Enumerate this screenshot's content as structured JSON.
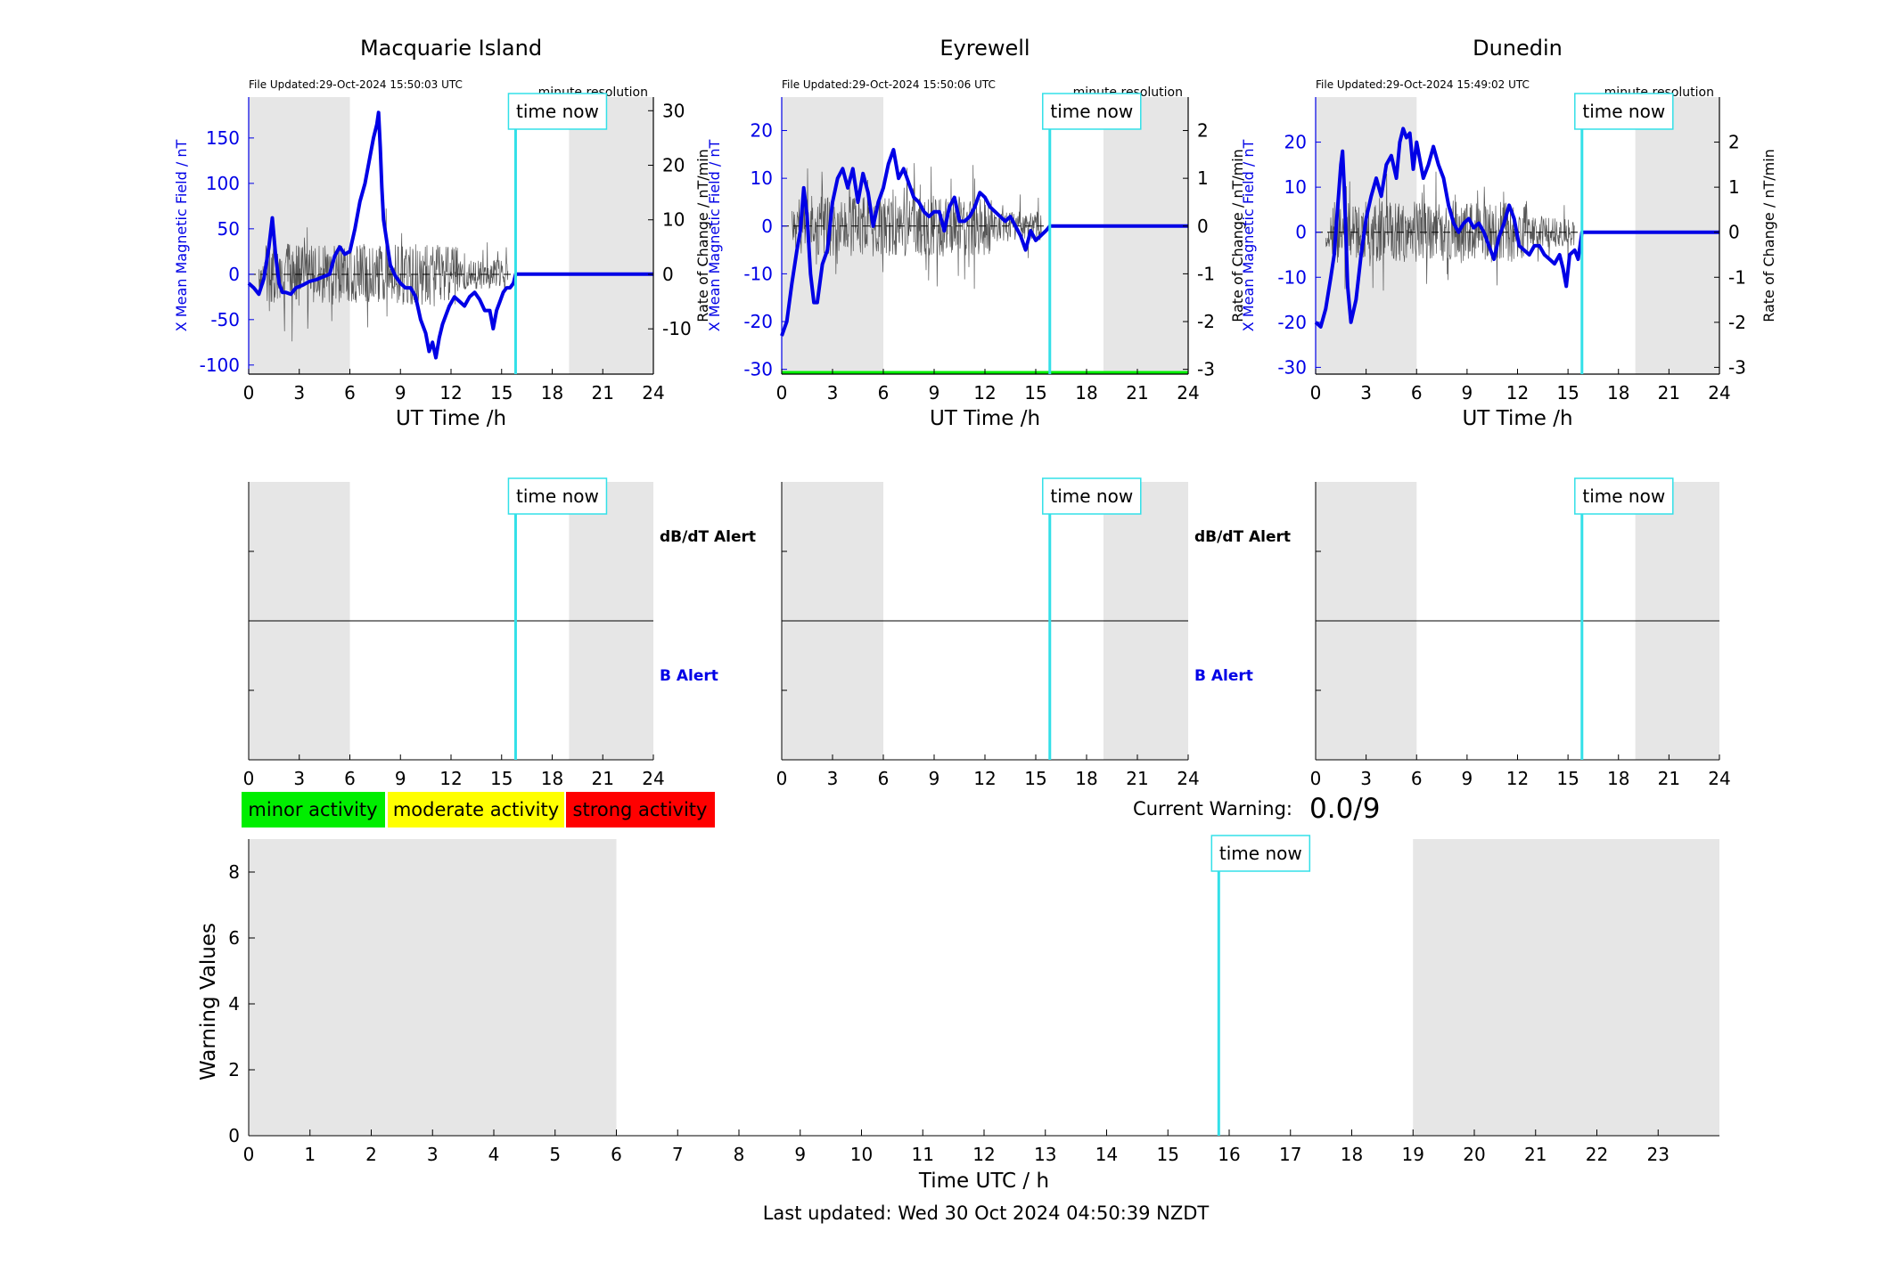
{
  "colors": {
    "blue": "#0000e6",
    "cyan": "#33e0e8",
    "gray_band": "#e6e6e6",
    "green": "#00ee00",
    "yellow": "#ffff00",
    "red": "#ff0000",
    "trace": "#555555"
  },
  "legend": {
    "minor": "minor activity",
    "moderate": "moderate activity",
    "strong": "strong activity"
  },
  "time_now_label": "time now",
  "time_now_hour": 15.83,
  "current_warning": {
    "label": "Current Warning:",
    "value": "0.0/9"
  },
  "alerts": {
    "dbdt": "dB/dT Alert",
    "b": "B Alert"
  },
  "resolution_label": "minute resolution",
  "last_updated": "Last updated: Wed 30 Oct 2024 04:50:39 NZDT",
  "chart_data": [
    {
      "type": "line",
      "title": "Macquarie Island",
      "file_updated": "File Updated:29-Oct-2024 15:50:03 UTC",
      "xlabel": "UT Time /h",
      "ylabel": "X Mean Magnetic Field / nT",
      "y2label": "Rate of Change / nT/min",
      "xlim": [
        0,
        24
      ],
      "xticks": [
        "0",
        "3",
        "6",
        "9",
        "12",
        "15",
        "18",
        "21",
        "24"
      ],
      "ylim": [
        -110,
        195
      ],
      "yticks": [
        -100,
        -50,
        0,
        50,
        100,
        150
      ],
      "y2lim": [
        -18.3,
        32.5
      ],
      "y2ticks": [
        -10,
        0,
        10,
        20,
        30
      ],
      "night_bands": [
        [
          0,
          6
        ],
        [
          19,
          24
        ]
      ],
      "series": [
        {
          "x": [
            0,
            0.3,
            0.6,
            0.9,
            1.2,
            1.4,
            1.6,
            1.8,
            2.0,
            2.2,
            2.5,
            2.8,
            3.2,
            3.6,
            4.0,
            4.4,
            4.8,
            5.1,
            5.4,
            5.7,
            6.0,
            6.3,
            6.6,
            6.9,
            7.2,
            7.4,
            7.6,
            7.7,
            7.8,
            7.9,
            8.0,
            8.2,
            8.4,
            8.7,
            9.0,
            9.3,
            9.6,
            9.9,
            10.2,
            10.5,
            10.7,
            10.9,
            11.1,
            11.3,
            11.5,
            11.7,
            11.9,
            12.2,
            12.5,
            12.8,
            13.1,
            13.4,
            13.7,
            14.0,
            14.3,
            14.5,
            14.7,
            14.9,
            15.1,
            15.3,
            15.5,
            15.7,
            15.83,
            16.0,
            18.0,
            21.0,
            24.0
          ],
          "y": [
            -10,
            -15,
            -22,
            -5,
            30,
            62,
            20,
            -10,
            -20,
            -20,
            -22,
            -15,
            -12,
            -8,
            -6,
            -3,
            0,
            20,
            30,
            22,
            25,
            50,
            80,
            100,
            130,
            150,
            165,
            178,
            140,
            95,
            60,
            35,
            10,
            -2,
            -10,
            -15,
            -15,
            -25,
            -50,
            -65,
            -85,
            -75,
            -92,
            -70,
            -55,
            -45,
            -35,
            -25,
            -30,
            -35,
            -25,
            -20,
            -28,
            -40,
            -40,
            -60,
            -40,
            -30,
            -20,
            -15,
            -15,
            -10,
            0,
            0,
            0,
            0,
            0
          ]
        }
      ]
    },
    {
      "type": "line",
      "title": "Eyrewell",
      "file_updated": "File Updated:29-Oct-2024 15:50:06 UTC",
      "xlabel": "UT Time /h",
      "ylabel": "X Mean Magnetic Field / nT",
      "y2label": "Rate of Change / nT/min",
      "xlim": [
        0,
        24
      ],
      "xticks": [
        "0",
        "3",
        "6",
        "9",
        "12",
        "15",
        "18",
        "21",
        "24"
      ],
      "ylim": [
        -31,
        27
      ],
      "yticks": [
        -30,
        -20,
        -10,
        0,
        10,
        20
      ],
      "y2lim": [
        -3.1,
        2.7
      ],
      "y2ticks": [
        -3,
        -2,
        -1,
        0,
        1,
        2
      ],
      "night_bands": [
        [
          0,
          6
        ],
        [
          19,
          24
        ]
      ],
      "series": [
        {
          "x": [
            0,
            0.3,
            0.6,
            0.9,
            1.1,
            1.3,
            1.5,
            1.7,
            1.9,
            2.1,
            2.4,
            2.7,
            3.0,
            3.3,
            3.6,
            3.9,
            4.2,
            4.5,
            4.8,
            5.1,
            5.4,
            5.7,
            6.0,
            6.3,
            6.6,
            6.9,
            7.2,
            7.5,
            7.8,
            8.1,
            8.4,
            8.7,
            9.0,
            9.3,
            9.6,
            9.9,
            10.2,
            10.5,
            10.8,
            11.1,
            11.4,
            11.7,
            12.0,
            12.3,
            12.6,
            12.9,
            13.2,
            13.5,
            13.8,
            14.1,
            14.4,
            14.7,
            15.0,
            15.3,
            15.6,
            15.83,
            16.0,
            18.0,
            21.0,
            24.0
          ],
          "y": [
            -23,
            -20,
            -12,
            -5,
            -1,
            8,
            2,
            -10,
            -16,
            -16,
            -8,
            -5,
            5,
            10,
            12,
            8,
            12,
            5,
            11,
            7,
            0,
            5,
            8,
            13,
            16,
            10,
            12,
            9,
            6,
            5,
            3,
            2,
            3,
            3,
            -1,
            4,
            6,
            1,
            1,
            2,
            4,
            7,
            6,
            4,
            3,
            2,
            1,
            2,
            0,
            -2,
            -5,
            -1,
            -3,
            -2,
            -1,
            0,
            0,
            0,
            0,
            0
          ]
        }
      ]
    },
    {
      "type": "line",
      "title": "Dunedin",
      "file_updated": "File Updated:29-Oct-2024 15:49:02 UTC",
      "xlabel": "UT Time /h",
      "ylabel": "X Mean Magnetic Field / nT",
      "y2label": "Rate of Change / nT/min",
      "xlim": [
        0,
        24
      ],
      "xticks": [
        "0",
        "3",
        "6",
        "9",
        "12",
        "15",
        "18",
        "21",
        "24"
      ],
      "ylim": [
        -31.5,
        30
      ],
      "yticks": [
        -30,
        -20,
        -10,
        0,
        10,
        20
      ],
      "y2lim": [
        -3.15,
        3.0
      ],
      "y2ticks": [
        -3,
        -2,
        -1,
        0,
        1,
        2
      ],
      "night_bands": [
        [
          0,
          6
        ],
        [
          19,
          24
        ]
      ],
      "series": [
        {
          "x": [
            0,
            0.3,
            0.6,
            0.9,
            1.1,
            1.3,
            1.5,
            1.6,
            1.7,
            1.9,
            2.1,
            2.4,
            2.7,
            3.0,
            3.3,
            3.6,
            3.9,
            4.2,
            4.5,
            4.8,
            5.0,
            5.2,
            5.4,
            5.6,
            5.8,
            6.0,
            6.2,
            6.4,
            6.7,
            7.0,
            7.3,
            7.6,
            7.9,
            8.2,
            8.5,
            8.8,
            9.1,
            9.4,
            9.7,
            10.0,
            10.3,
            10.6,
            10.9,
            11.2,
            11.5,
            11.8,
            12.1,
            12.4,
            12.7,
            13.0,
            13.3,
            13.6,
            13.9,
            14.2,
            14.5,
            14.7,
            14.9,
            15.1,
            15.4,
            15.6,
            15.83,
            16.0,
            18.0,
            21.0,
            24.0
          ],
          "y": [
            -20,
            -21,
            -17,
            -10,
            -5,
            5,
            15,
            18,
            10,
            -12,
            -20,
            -15,
            -5,
            3,
            8,
            12,
            8,
            15,
            17,
            12,
            20,
            23,
            21,
            22,
            14,
            20,
            16,
            12,
            15,
            19,
            15,
            12,
            6,
            2,
            0,
            2,
            3,
            1,
            2,
            0,
            -3,
            -6,
            -1,
            2,
            6,
            3,
            -3,
            -4,
            -5,
            -3,
            -3,
            -5,
            -6,
            -7,
            -5,
            -8,
            -12,
            -5,
            -4,
            -6,
            0,
            0,
            0,
            0,
            0
          ]
        }
      ]
    },
    {
      "type": "bar",
      "xlabel": "Time UTC / h",
      "ylabel": "Warning Values",
      "xlim": [
        0,
        24
      ],
      "xticks": [
        "0",
        "1",
        "2",
        "3",
        "4",
        "5",
        "6",
        "7",
        "8",
        "9",
        "10",
        "11",
        "12",
        "13",
        "14",
        "15",
        "16",
        "17",
        "18",
        "19",
        "20",
        "21",
        "22",
        "23"
      ],
      "ylim": [
        0,
        9
      ],
      "yticks": [
        0,
        2,
        4,
        6,
        8
      ],
      "night_bands": [
        [
          0,
          6
        ],
        [
          19,
          24
        ]
      ],
      "values": []
    }
  ]
}
